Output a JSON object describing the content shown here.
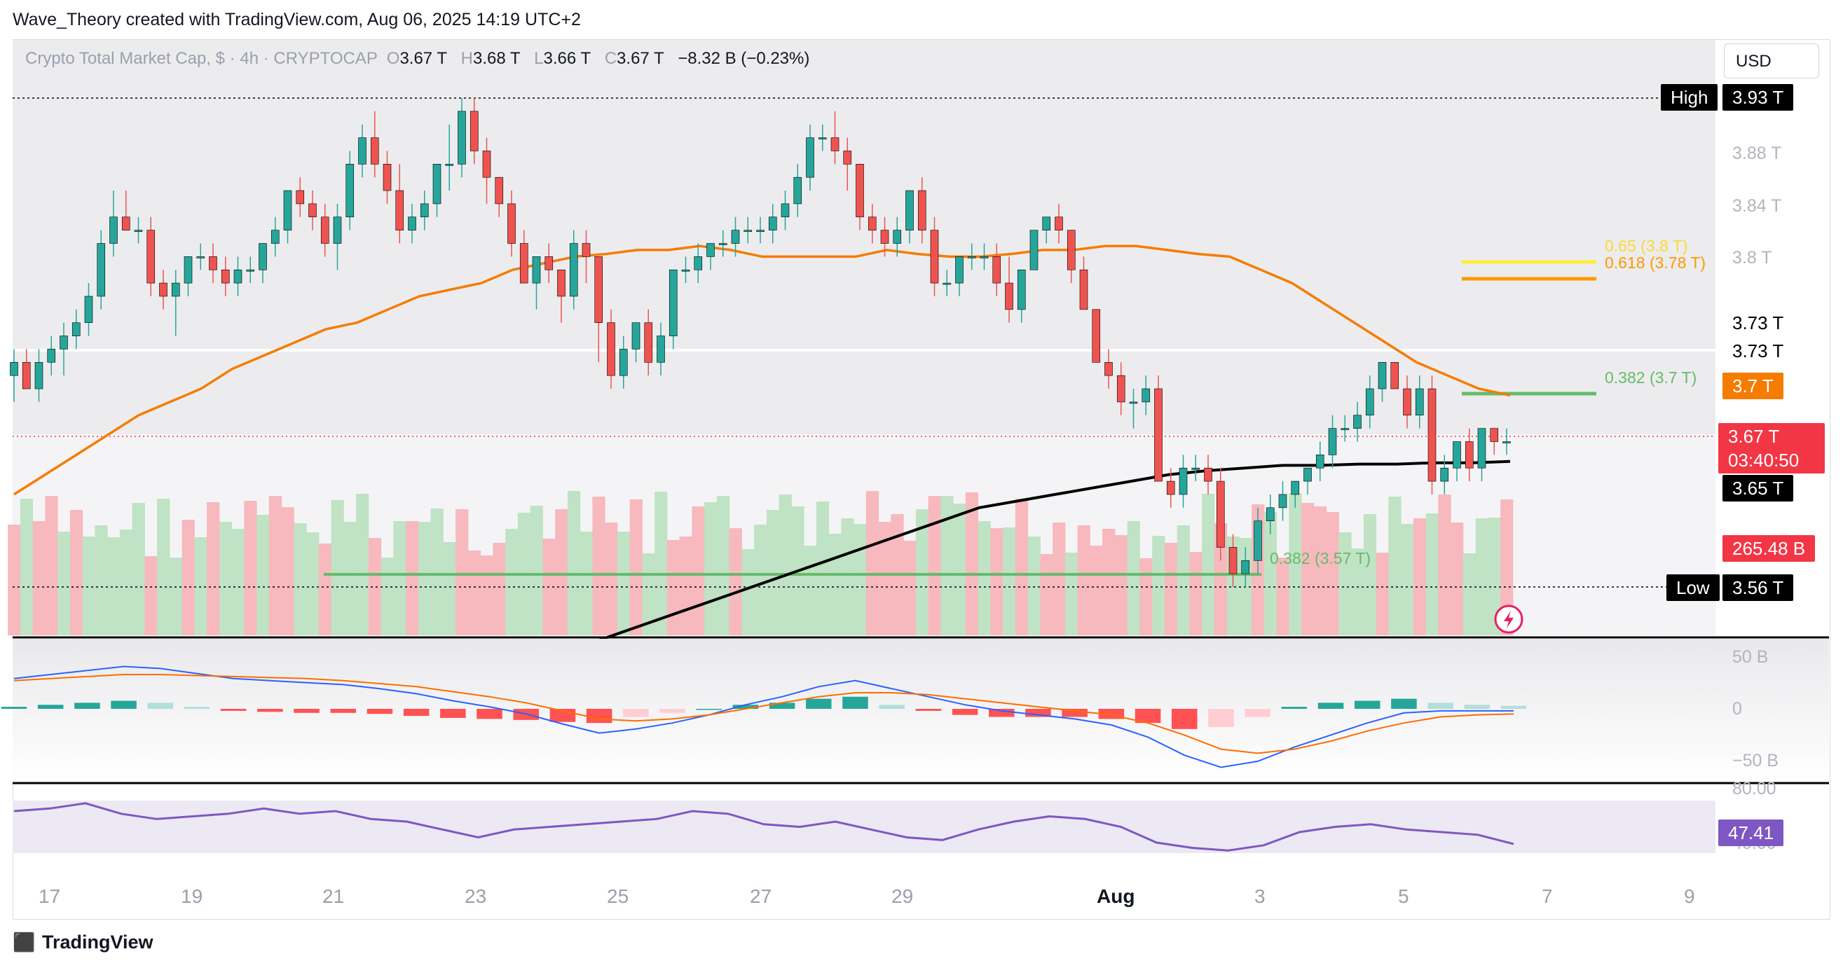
{
  "header": {
    "creator_line": "Wave_Theory created with TradingView.com, Aug 06, 2025 14:19 UTC+2"
  },
  "legend": {
    "symbol": "Crypto Total Market Cap, $ · 4h · CRYPTOCAP",
    "o_label": "O",
    "o": "3.67 T",
    "h_label": "H",
    "h": "3.68 T",
    "l_label": "L",
    "l": "3.66 T",
    "c_label": "C",
    "c": "3.67 T",
    "change": "−8.32 B (−0.23%)"
  },
  "currency_button": "USD",
  "price_tags": {
    "high_label": "High",
    "high_value": "3.93 T",
    "t1": "3.73 T",
    "t2": "3.73 T",
    "ma50": "3.7 T",
    "last": "3.67 T",
    "countdown": "03:40:50",
    "ma200": "3.65 T",
    "volume": "265.48 B",
    "low_label": "Low",
    "low_value": "3.56 T"
  },
  "fib": {
    "f65": "0.65 (3.8 T)",
    "f618": "0.618 (3.78 T)",
    "f382_top": "0.382 (3.7 T)",
    "f382_low": "0.382 (3.57 T)"
  },
  "price_axis": [
    "3.88 T",
    "3.84 T",
    "3.8 T",
    "3.56 T"
  ],
  "macd_axis": [
    "50 B",
    "0",
    "−50 B"
  ],
  "rsi_axis": [
    "80.00",
    "40.00"
  ],
  "rsi_value": "47.41",
  "x_labels": [
    "17",
    "19",
    "21",
    "23",
    "25",
    "27",
    "29",
    "Aug",
    "3",
    "5",
    "7",
    "9"
  ],
  "footer_brand": "TradingView",
  "colors": {
    "up": "#26a69a",
    "down": "#ef5350",
    "ma50": "#f57c00",
    "ma200": "#000000",
    "fib_65": "#ffeb3b",
    "fib_618": "#ff9800",
    "fib_382": "#66bb6a",
    "macd_line": "#2962ff",
    "signal_line": "#ff6d00",
    "rsi": "#7e57c2",
    "last_price": "#f23645"
  },
  "chart_data": [
    {
      "type": "candlestick",
      "title": "Crypto Total Market Cap, $ · 4h · CRYPTOCAP",
      "ylim": [
        3.525,
        3.95
      ],
      "overlays": [
        "EMA 50 (orange)",
        "EMA 200 (black)",
        "Volume profile"
      ],
      "ohlc": [
        [
          3.72,
          3.74,
          3.7,
          3.73
        ],
        [
          3.73,
          3.74,
          3.71,
          3.71
        ],
        [
          3.71,
          3.74,
          3.7,
          3.73
        ],
        [
          3.73,
          3.75,
          3.72,
          3.74
        ],
        [
          3.74,
          3.76,
          3.72,
          3.75
        ],
        [
          3.75,
          3.77,
          3.74,
          3.76
        ],
        [
          3.76,
          3.79,
          3.75,
          3.78
        ],
        [
          3.78,
          3.83,
          3.77,
          3.82
        ],
        [
          3.82,
          3.86,
          3.81,
          3.84
        ],
        [
          3.84,
          3.86,
          3.83,
          3.83
        ],
        [
          3.83,
          3.84,
          3.82,
          3.83
        ],
        [
          3.83,
          3.84,
          3.78,
          3.79
        ],
        [
          3.79,
          3.8,
          3.77,
          3.78
        ],
        [
          3.78,
          3.8,
          3.75,
          3.79
        ],
        [
          3.79,
          3.81,
          3.78,
          3.81
        ],
        [
          3.81,
          3.82,
          3.8,
          3.81
        ],
        [
          3.81,
          3.82,
          3.79,
          3.8
        ],
        [
          3.8,
          3.81,
          3.78,
          3.79
        ],
        [
          3.79,
          3.81,
          3.78,
          3.8
        ],
        [
          3.8,
          3.81,
          3.79,
          3.8
        ],
        [
          3.8,
          3.82,
          3.79,
          3.82
        ],
        [
          3.82,
          3.84,
          3.81,
          3.83
        ],
        [
          3.83,
          3.86,
          3.82,
          3.86
        ],
        [
          3.86,
          3.87,
          3.84,
          3.85
        ],
        [
          3.85,
          3.86,
          3.83,
          3.84
        ],
        [
          3.84,
          3.85,
          3.81,
          3.82
        ],
        [
          3.82,
          3.85,
          3.8,
          3.84
        ],
        [
          3.84,
          3.89,
          3.83,
          3.88
        ],
        [
          3.88,
          3.91,
          3.87,
          3.9
        ],
        [
          3.9,
          3.92,
          3.87,
          3.88
        ],
        [
          3.88,
          3.89,
          3.85,
          3.86
        ],
        [
          3.86,
          3.88,
          3.82,
          3.83
        ],
        [
          3.83,
          3.85,
          3.82,
          3.84
        ],
        [
          3.84,
          3.86,
          3.83,
          3.85
        ],
        [
          3.85,
          3.88,
          3.84,
          3.88
        ],
        [
          3.88,
          3.91,
          3.86,
          3.88
        ],
        [
          3.88,
          3.93,
          3.87,
          3.92
        ],
        [
          3.92,
          3.93,
          3.88,
          3.89
        ],
        [
          3.89,
          3.9,
          3.85,
          3.87
        ],
        [
          3.87,
          3.87,
          3.84,
          3.85
        ],
        [
          3.85,
          3.86,
          3.81,
          3.82
        ],
        [
          3.82,
          3.83,
          3.79,
          3.79
        ],
        [
          3.79,
          3.81,
          3.77,
          3.81
        ],
        [
          3.81,
          3.82,
          3.79,
          3.8
        ],
        [
          3.8,
          3.8,
          3.76,
          3.78
        ],
        [
          3.78,
          3.83,
          3.77,
          3.82
        ],
        [
          3.82,
          3.83,
          3.79,
          3.81
        ],
        [
          3.81,
          3.81,
          3.73,
          3.76
        ],
        [
          3.76,
          3.77,
          3.71,
          3.72
        ],
        [
          3.72,
          3.75,
          3.71,
          3.74
        ],
        [
          3.74,
          3.76,
          3.73,
          3.76
        ],
        [
          3.76,
          3.77,
          3.72,
          3.73
        ],
        [
          3.73,
          3.76,
          3.72,
          3.75
        ],
        [
          3.75,
          3.8,
          3.74,
          3.8
        ],
        [
          3.8,
          3.81,
          3.79,
          3.8
        ],
        [
          3.8,
          3.82,
          3.79,
          3.81
        ],
        [
          3.81,
          3.82,
          3.8,
          3.82
        ],
        [
          3.82,
          3.83,
          3.81,
          3.82
        ],
        [
          3.82,
          3.84,
          3.81,
          3.83
        ],
        [
          3.83,
          3.84,
          3.82,
          3.83
        ],
        [
          3.83,
          3.84,
          3.82,
          3.83
        ],
        [
          3.83,
          3.85,
          3.82,
          3.84
        ],
        [
          3.84,
          3.86,
          3.83,
          3.85
        ],
        [
          3.85,
          3.88,
          3.84,
          3.87
        ],
        [
          3.87,
          3.91,
          3.86,
          3.9
        ],
        [
          3.9,
          3.91,
          3.89,
          3.9
        ],
        [
          3.9,
          3.92,
          3.88,
          3.89
        ],
        [
          3.89,
          3.9,
          3.86,
          3.88
        ],
        [
          3.88,
          3.88,
          3.83,
          3.84
        ],
        [
          3.84,
          3.85,
          3.82,
          3.83
        ],
        [
          3.83,
          3.84,
          3.81,
          3.82
        ],
        [
          3.82,
          3.84,
          3.81,
          3.83
        ],
        [
          3.83,
          3.86,
          3.82,
          3.86
        ],
        [
          3.86,
          3.87,
          3.82,
          3.83
        ],
        [
          3.83,
          3.84,
          3.78,
          3.79
        ],
        [
          3.79,
          3.8,
          3.78,
          3.79
        ],
        [
          3.79,
          3.81,
          3.78,
          3.81
        ],
        [
          3.81,
          3.82,
          3.8,
          3.81
        ],
        [
          3.81,
          3.82,
          3.8,
          3.81
        ],
        [
          3.81,
          3.82,
          3.78,
          3.79
        ],
        [
          3.79,
          3.81,
          3.76,
          3.77
        ],
        [
          3.77,
          3.8,
          3.76,
          3.8
        ],
        [
          3.8,
          3.83,
          3.8,
          3.83
        ],
        [
          3.83,
          3.84,
          3.82,
          3.84
        ],
        [
          3.84,
          3.85,
          3.82,
          3.83
        ],
        [
          3.83,
          3.83,
          3.79,
          3.8
        ],
        [
          3.8,
          3.81,
          3.77,
          3.77
        ],
        [
          3.77,
          3.77,
          3.73,
          3.73
        ],
        [
          3.73,
          3.74,
          3.71,
          3.72
        ],
        [
          3.72,
          3.73,
          3.69,
          3.7
        ],
        [
          3.7,
          3.71,
          3.68,
          3.7
        ],
        [
          3.7,
          3.72,
          3.69,
          3.71
        ],
        [
          3.71,
          3.72,
          3.64,
          3.64
        ],
        [
          3.64,
          3.65,
          3.62,
          3.63
        ],
        [
          3.63,
          3.66,
          3.62,
          3.65
        ],
        [
          3.65,
          3.66,
          3.64,
          3.65
        ],
        [
          3.65,
          3.66,
          3.63,
          3.64
        ],
        [
          3.64,
          3.65,
          3.58,
          3.59
        ],
        [
          3.59,
          3.6,
          3.56,
          3.57
        ],
        [
          3.57,
          3.59,
          3.56,
          3.58
        ],
        [
          3.58,
          3.62,
          3.57,
          3.61
        ],
        [
          3.61,
          3.63,
          3.6,
          3.62
        ],
        [
          3.62,
          3.64,
          3.61,
          3.63
        ],
        [
          3.63,
          3.64,
          3.62,
          3.64
        ],
        [
          3.64,
          3.65,
          3.63,
          3.65
        ],
        [
          3.65,
          3.67,
          3.64,
          3.66
        ],
        [
          3.66,
          3.69,
          3.65,
          3.68
        ],
        [
          3.68,
          3.69,
          3.67,
          3.68
        ],
        [
          3.68,
          3.7,
          3.67,
          3.69
        ],
        [
          3.69,
          3.72,
          3.68,
          3.71
        ],
        [
          3.71,
          3.73,
          3.7,
          3.73
        ],
        [
          3.73,
          3.73,
          3.71,
          3.71
        ],
        [
          3.71,
          3.72,
          3.68,
          3.69
        ],
        [
          3.69,
          3.72,
          3.68,
          3.71
        ],
        [
          3.71,
          3.72,
          3.63,
          3.64
        ],
        [
          3.64,
          3.66,
          3.63,
          3.65
        ],
        [
          3.65,
          3.67,
          3.64,
          3.67
        ],
        [
          3.67,
          3.68,
          3.64,
          3.65
        ],
        [
          3.65,
          3.68,
          3.64,
          3.68
        ],
        [
          3.68,
          3.68,
          3.66,
          3.67
        ],
        [
          3.67,
          3.68,
          3.66,
          3.67
        ]
      ],
      "ema50": [
        3.63,
        3.645,
        3.66,
        3.675,
        3.69,
        3.7,
        3.71,
        3.725,
        3.735,
        3.745,
        3.755,
        3.76,
        3.77,
        3.78,
        3.785,
        3.79,
        3.8,
        3.805,
        3.81,
        3.812,
        3.815,
        3.815,
        3.818,
        3.815,
        3.81,
        3.81,
        3.81,
        3.81,
        3.815,
        3.812,
        3.81,
        3.81,
        3.812,
        3.815,
        3.815,
        3.818,
        3.818,
        3.815,
        3.812,
        3.81,
        3.8,
        3.79,
        3.775,
        3.76,
        3.745,
        3.73,
        3.72,
        3.71,
        3.705
      ],
      "ema200": [
        3.48,
        3.49,
        3.5,
        3.51,
        3.52,
        3.53,
        3.54,
        3.55,
        3.56,
        3.57,
        3.58,
        3.59,
        3.6,
        3.61,
        3.62,
        3.625,
        3.63,
        3.635,
        3.64,
        3.645,
        3.648,
        3.65,
        3.652,
        3.652,
        3.653,
        3.653,
        3.654,
        3.654,
        3.655
      ],
      "volume_profile_note": "POC band shaded; red/green bars behind candles"
    },
    {
      "type": "line",
      "title": "MACD",
      "ylim": [
        -60,
        60
      ],
      "series": [
        {
          "name": "",
          "values": [
            30,
            34,
            38,
            42,
            40,
            35,
            30,
            28,
            26,
            24,
            20,
            15,
            8,
            2,
            -5,
            -15,
            -24,
            -20,
            -14,
            -6,
            4,
            12,
            22,
            28,
            20,
            12,
            4,
            -2,
            -6,
            -10,
            -16,
            -28,
            -46,
            -58,
            -52,
            -38,
            -26,
            -14,
            -4,
            -2,
            -2,
            -2
          ]
        },
        {
          "name": "",
          "values": [
            28,
            30,
            32,
            34,
            34,
            33,
            32,
            31,
            30,
            28,
            25,
            22,
            17,
            12,
            6,
            -2,
            -10,
            -12,
            -10,
            -6,
            0,
            6,
            12,
            16,
            16,
            14,
            10,
            6,
            2,
            -2,
            -6,
            -14,
            -26,
            -40,
            -44,
            -40,
            -32,
            -22,
            -14,
            -8,
            -6,
            -5
          ]
        }
      ]
    },
    {
      "type": "line",
      "title": "RSI",
      "ylim": [
        30,
        90
      ],
      "series": [
        {
          "name": "",
          "values": [
            72,
            74,
            78,
            70,
            66,
            68,
            70,
            74,
            70,
            72,
            66,
            64,
            58,
            52,
            58,
            60,
            62,
            64,
            66,
            72,
            70,
            62,
            60,
            64,
            58,
            52,
            50,
            58,
            64,
            68,
            66,
            60,
            48,
            44,
            42,
            46,
            56,
            60,
            62,
            58,
            56,
            54,
            47
          ]
        }
      ]
    }
  ]
}
